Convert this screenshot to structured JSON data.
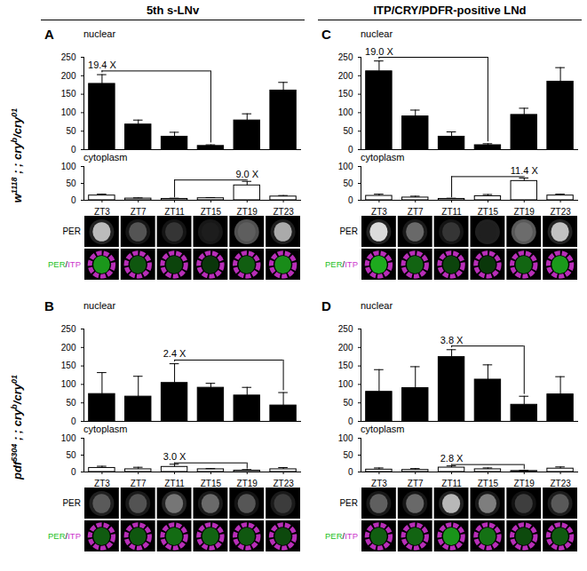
{
  "column_titles": [
    "5th s-LNv",
    "ITP/CRY/PDFR-positive LNd"
  ],
  "row_labels": [
    [
      {
        "text": "w"
      },
      {
        "text": "1118",
        "sup": true
      },
      {
        "text": " ; ; cry"
      },
      {
        "text": "b",
        "sup": true
      },
      {
        "text": "/cry"
      },
      {
        "text": "01",
        "sup": true
      }
    ],
    [
      {
        "text": "pdf"
      },
      {
        "text": "5304",
        "sup": true
      },
      {
        "text": " ; ; cry"
      },
      {
        "text": "b",
        "sup": true
      },
      {
        "text": "/cry"
      },
      {
        "text": "01",
        "sup": true
      }
    ]
  ],
  "image_labels": {
    "gray": "PER",
    "merge": [
      {
        "text": "PER",
        "color": "#22c022"
      },
      {
        "text": "/",
        "color": "#000000"
      },
      {
        "text": "ITP",
        "color": "#cc33cc"
      }
    ]
  },
  "chart_data": [
    {
      "panel": "A",
      "title": "nuclear",
      "type": "bar",
      "categories": [
        "ZT3",
        "ZT7",
        "ZT11",
        "ZT15",
        "ZT19",
        "ZT23"
      ],
      "values": [
        178,
        68,
        35,
        10,
        79,
        160
      ],
      "errors": [
        25,
        12,
        12,
        3,
        18,
        22
      ],
      "color": "#000000",
      "ylim": [
        0,
        250
      ],
      "yticks": [
        0,
        50,
        100,
        150,
        200,
        250
      ],
      "tick_labels": "y",
      "annotation": {
        "from": "ZT3",
        "to": "ZT15",
        "label": "19.4 X"
      }
    },
    {
      "panel": "A",
      "title": "cytoplasm",
      "type": "bar",
      "categories": [
        "ZT3",
        "ZT7",
        "ZT11",
        "ZT15",
        "ZT19",
        "ZT23"
      ],
      "values": [
        14,
        5,
        4,
        6,
        44,
        11
      ],
      "errors": [
        4,
        2,
        2,
        2,
        12,
        3
      ],
      "color": "#ffffff",
      "ylim": [
        0,
        100
      ],
      "yticks": [
        0,
        50,
        100
      ],
      "tick_labels": true,
      "annotation": {
        "from": "ZT11",
        "to": "ZT19",
        "label": "9.0 X"
      }
    },
    {
      "panel": "B",
      "title": "nuclear",
      "type": "bar",
      "categories": [
        "ZT3",
        "ZT7",
        "ZT11",
        "ZT15",
        "ZT19",
        "ZT23"
      ],
      "values": [
        74,
        67,
        104,
        91,
        70,
        43
      ],
      "errors": [
        58,
        55,
        52,
        12,
        22,
        35
      ],
      "color": "#000000",
      "ylim": [
        0,
        250
      ],
      "yticks": [
        0,
        50,
        100,
        150,
        200,
        250
      ],
      "tick_labels": "y",
      "annotation": {
        "from": "ZT11",
        "to": "ZT23",
        "label": "2.4 X"
      }
    },
    {
      "panel": "B",
      "title": "cytoplasm",
      "type": "bar",
      "categories": [
        "ZT3",
        "ZT7",
        "ZT11",
        "ZT15",
        "ZT19",
        "ZT23"
      ],
      "values": [
        12,
        8,
        15,
        8,
        4,
        8
      ],
      "errors": [
        5,
        6,
        8,
        2,
        3,
        5
      ],
      "color": "#ffffff",
      "ylim": [
        0,
        100
      ],
      "yticks": [
        0,
        50,
        100
      ],
      "tick_labels": true,
      "annotation": {
        "from": "ZT11",
        "to": "ZT19",
        "label": "3.0 X"
      }
    },
    {
      "panel": "C",
      "title": "nuclear",
      "type": "bar",
      "categories": [
        "ZT3",
        "ZT7",
        "ZT11",
        "ZT15",
        "ZT19",
        "ZT23"
      ],
      "values": [
        212,
        90,
        35,
        12,
        94,
        184
      ],
      "errors": [
        28,
        17,
        13,
        4,
        18,
        38
      ],
      "color": "#000000",
      "ylim": [
        0,
        250
      ],
      "yticks": [
        0,
        50,
        100,
        150,
        200,
        250
      ],
      "tick_labels": "y",
      "annotation": {
        "from": "ZT3",
        "to": "ZT15",
        "label": "19.0 X"
      }
    },
    {
      "panel": "C",
      "title": "cytoplasm",
      "type": "bar",
      "categories": [
        "ZT3",
        "ZT7",
        "ZT11",
        "ZT15",
        "ZT19",
        "ZT23"
      ],
      "values": [
        13,
        8,
        4,
        12,
        57,
        14
      ],
      "errors": [
        5,
        4,
        2,
        5,
        9,
        4
      ],
      "color": "#ffffff",
      "ylim": [
        0,
        100
      ],
      "yticks": [
        0,
        50,
        100
      ],
      "tick_labels": true,
      "annotation": {
        "from": "ZT11",
        "to": "ZT19",
        "label": "11.4 X"
      }
    },
    {
      "panel": "D",
      "title": "nuclear",
      "type": "bar",
      "categories": [
        "ZT3",
        "ZT7",
        "ZT11",
        "ZT15",
        "ZT19",
        "ZT23"
      ],
      "values": [
        80,
        90,
        174,
        113,
        45,
        73
      ],
      "errors": [
        60,
        58,
        20,
        40,
        23,
        48
      ],
      "color": "#000000",
      "ylim": [
        0,
        250
      ],
      "yticks": [
        0,
        50,
        100,
        150,
        200,
        250
      ],
      "tick_labels": "y",
      "annotation": {
        "from": "ZT11",
        "to": "ZT19",
        "label": "3.8 X"
      }
    },
    {
      "panel": "D",
      "title": "cytoplasm",
      "type": "bar",
      "categories": [
        "ZT3",
        "ZT7",
        "ZT11",
        "ZT15",
        "ZT19",
        "ZT23"
      ],
      "values": [
        7,
        6,
        13,
        8,
        3,
        10
      ],
      "errors": [
        5,
        4,
        5,
        4,
        2,
        5
      ],
      "color": "#ffffff",
      "ylim": [
        0,
        100
      ],
      "yticks": [
        0,
        50,
        100
      ],
      "tick_labels": true,
      "annotation": {
        "from": "ZT11",
        "to": "ZT19",
        "label": "2.8 X"
      }
    }
  ]
}
